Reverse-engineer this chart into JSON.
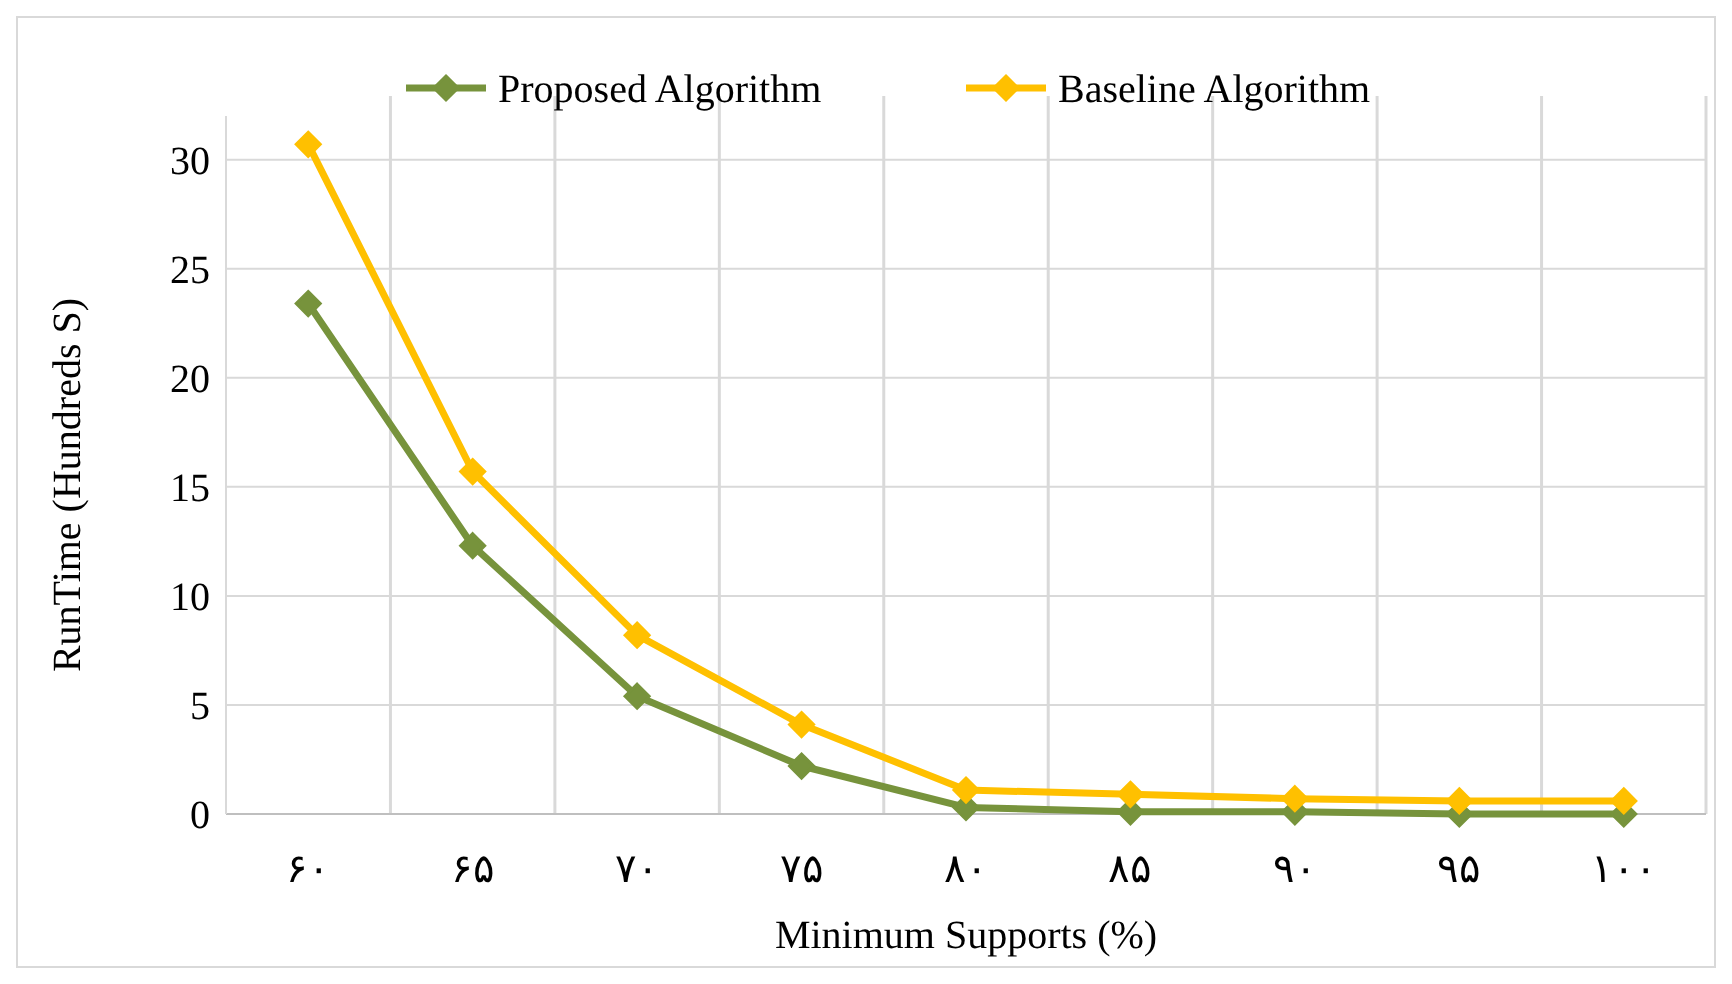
{
  "chart_data": {
    "type": "line",
    "xlabel": "Minimum Supports (%)",
    "ylabel": "RunTime (Hundreds S)",
    "categories": [
      "۶۰",
      "۶۵",
      "۷۰",
      "۷۵",
      "۸۰",
      "۸۵",
      "۹۰",
      "۹۵",
      "۱۰۰"
    ],
    "series": [
      {
        "name": "Proposed Algorithm",
        "color": "#77933c",
        "values": [
          23.4,
          12.3,
          5.4,
          2.2,
          0.3,
          0.1,
          0.1,
          0,
          0
        ]
      },
      {
        "name": "Baseline Algorithm",
        "color": "#ffc000",
        "values": [
          30.7,
          15.7,
          8.2,
          4.1,
          1.1,
          0.9,
          0.7,
          0.6,
          0.6
        ]
      }
    ],
    "ylim": [
      0,
      32
    ],
    "yticks": [
      0,
      5,
      10,
      15,
      20,
      25,
      30
    ],
    "grid": true,
    "legend": "top",
    "marker": "diamond",
    "line_style": "solid"
  }
}
